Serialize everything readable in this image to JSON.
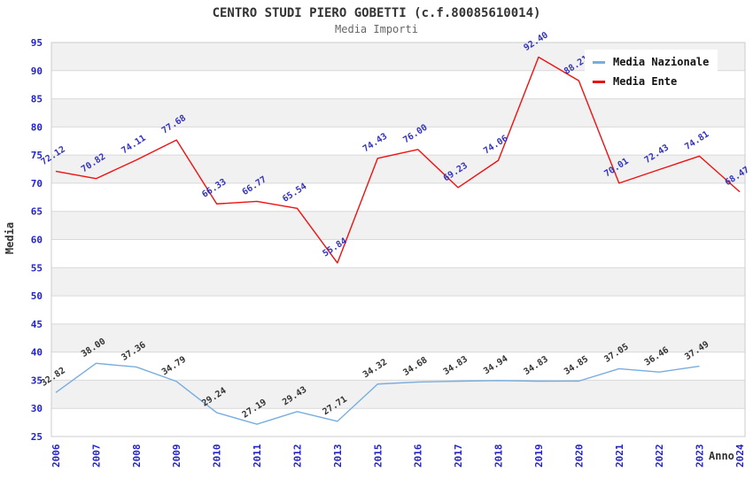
{
  "colors": {
    "axis_tick": "#2222cc",
    "band": "#f1f1f1",
    "gridline": "#d9d9d9",
    "plot_border": "#cccccc",
    "title": "#333333",
    "subtitle": "#666666",
    "nazionale_line": "#78ade0",
    "ente_line": "#ee1111"
  },
  "chart_data": {
    "type": "line",
    "title": "CENTRO STUDI PIERO GOBETTI (c.f.80085610014)",
    "subtitle": "Media Importi",
    "xlabel": "Anno",
    "ylabel": "Media",
    "ylim": [
      25,
      95
    ],
    "y_tick_step": 5,
    "grid": "horizontal-bands-alternating",
    "legend_position": "top-right",
    "x": [
      "2006",
      "2007",
      "2008",
      "2009",
      "2010",
      "2011",
      "2012",
      "2013",
      "2015",
      "2016",
      "2017",
      "2018",
      "2019",
      "2020",
      "2021",
      "2022",
      "2023",
      "2024"
    ],
    "series": [
      {
        "name": "Media Nazionale",
        "color": "#78ade0",
        "label_color": "#333333",
        "values": [
          32.82,
          38.0,
          37.36,
          34.79,
          29.24,
          27.19,
          29.43,
          27.71,
          34.32,
          34.68,
          34.83,
          34.94,
          34.83,
          34.85,
          37.05,
          36.46,
          37.49,
          null
        ]
      },
      {
        "name": "Media Ente",
        "color": "#ee1111",
        "label_color": "#3333bb",
        "values": [
          72.12,
          70.82,
          74.11,
          77.68,
          66.33,
          66.77,
          65.54,
          55.84,
          74.43,
          76.0,
          69.23,
          74.06,
          92.4,
          88.21,
          70.01,
          72.43,
          74.81,
          68.47
        ]
      }
    ]
  }
}
